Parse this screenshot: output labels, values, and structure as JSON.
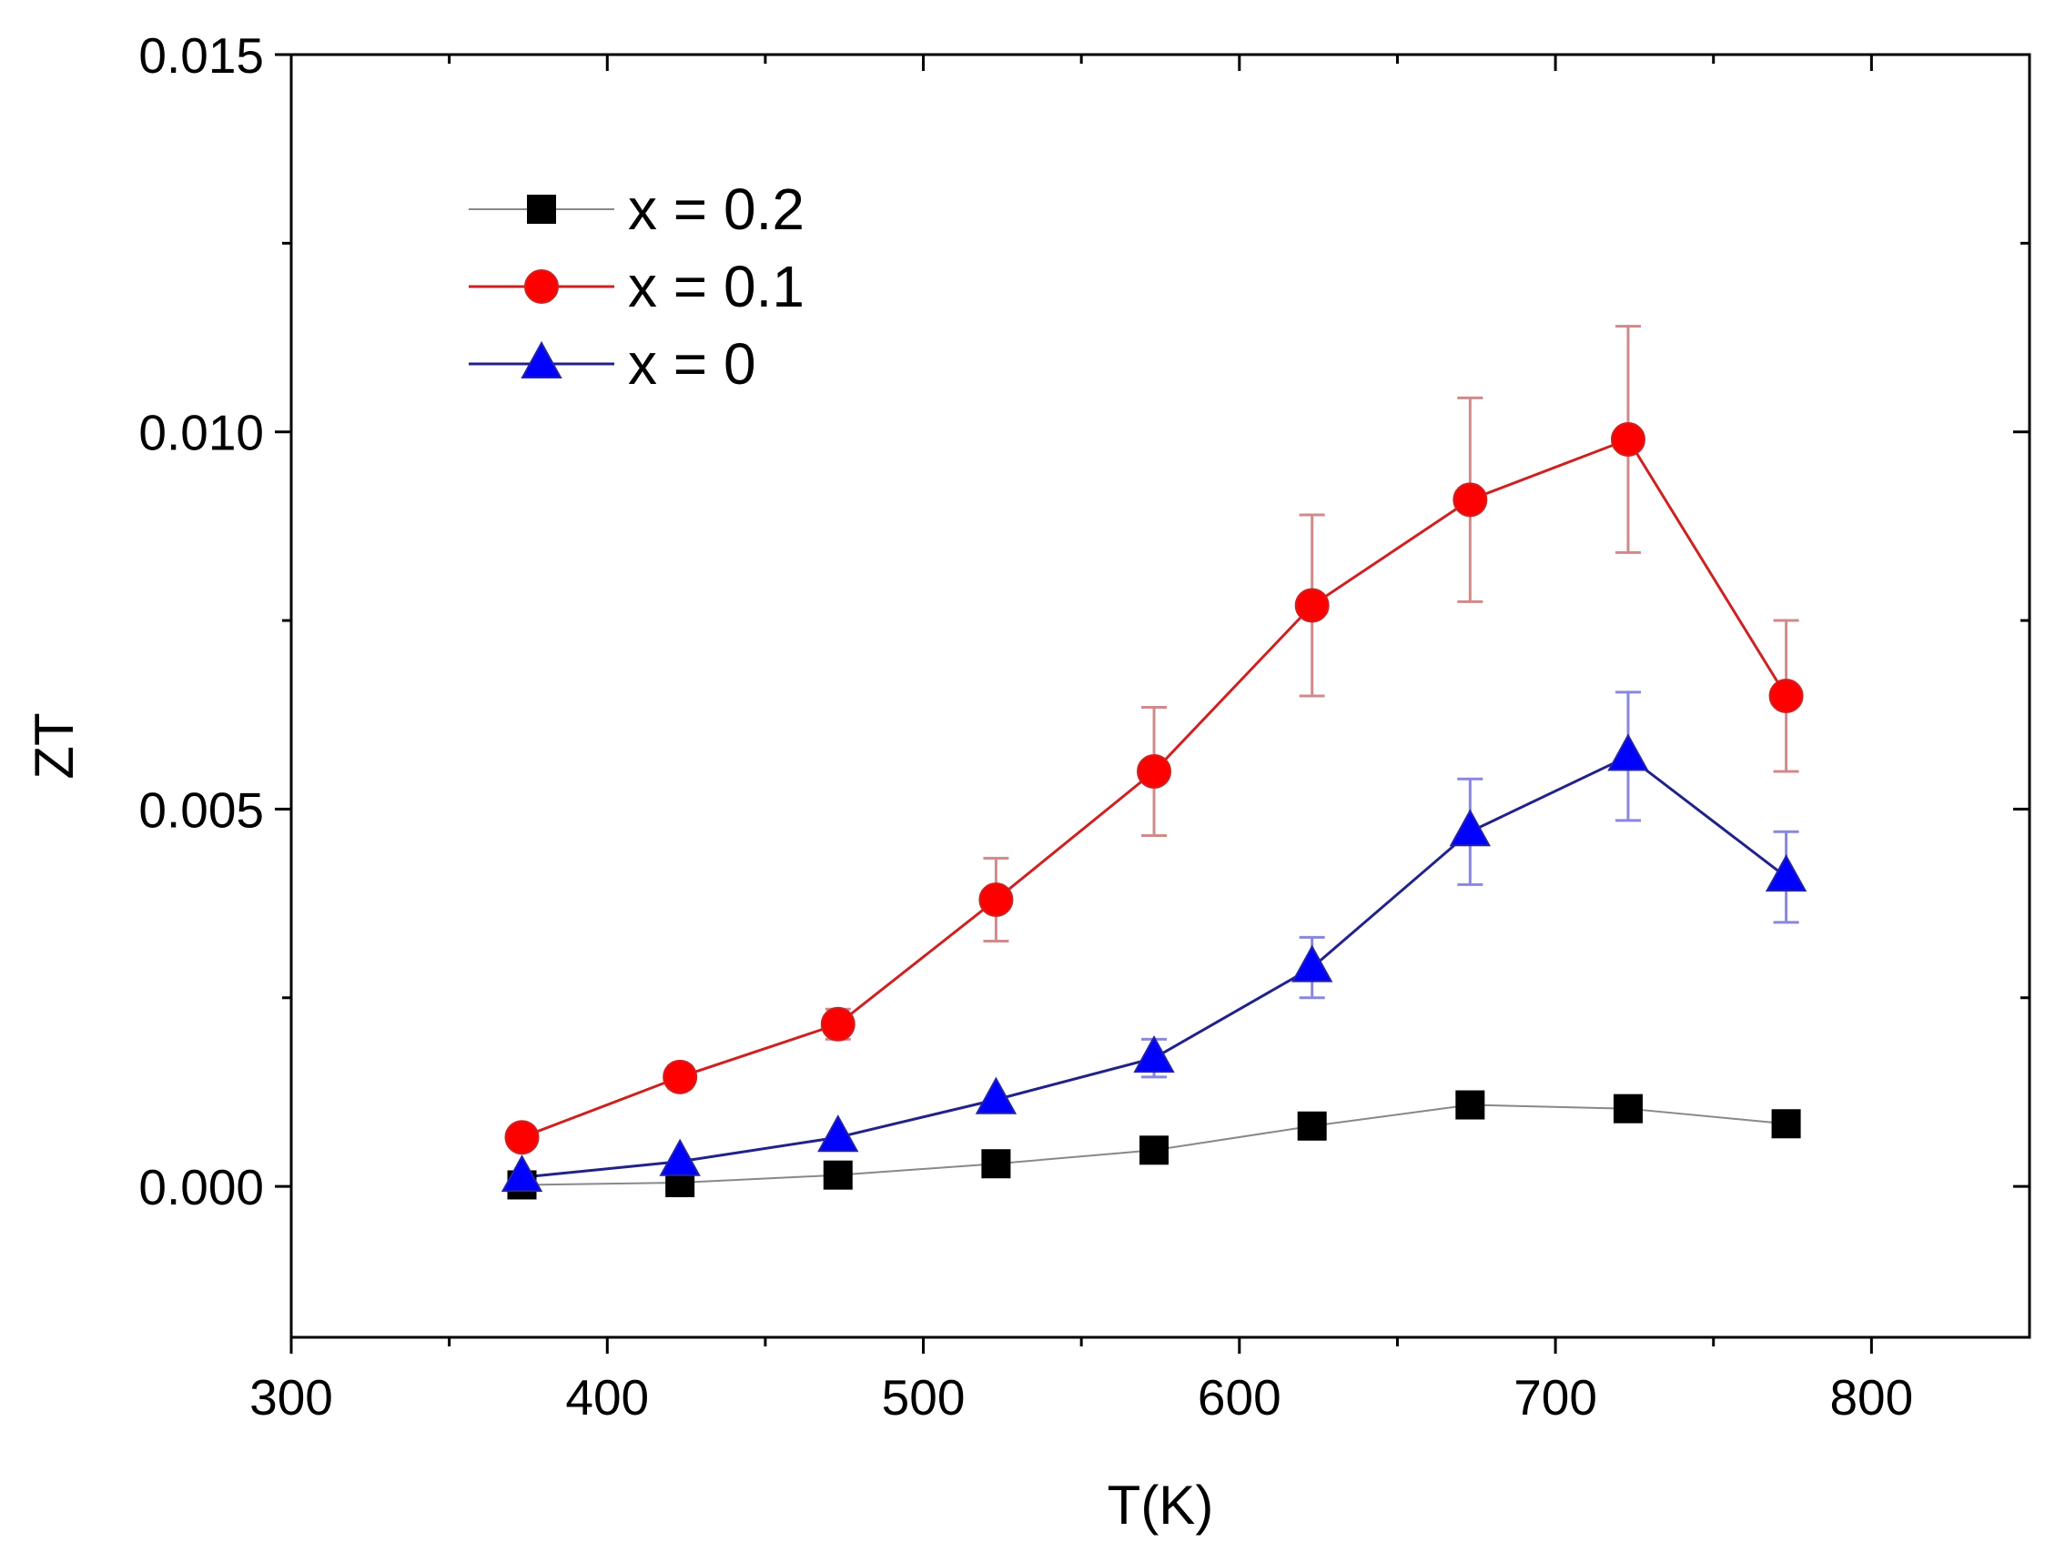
{
  "chart_data": {
    "type": "line",
    "title": "",
    "xlabel": "T(K)",
    "ylabel": "ZT",
    "xlim": [
      300,
      850
    ],
    "ylim": [
      -0.002,
      0.015
    ],
    "x_ticks": [
      300,
      400,
      500,
      600,
      700,
      800
    ],
    "x_tick_labels": [
      "300",
      "400",
      "500",
      "600",
      "700",
      "800"
    ],
    "y_ticks": [
      0.0,
      0.005,
      0.01,
      0.015
    ],
    "y_tick_labels": [
      "0.000",
      "0.005",
      "0.010",
      "0.015"
    ],
    "legend_position": "top-left",
    "x": [
      373,
      423,
      473,
      523,
      573,
      623,
      673,
      723,
      773
    ],
    "series": [
      {
        "name": "x = 0.2",
        "label": "x = 0.2",
        "color": "#000000",
        "line_color": "#888888",
        "marker": "square",
        "values": [
          2e-05,
          5e-05,
          0.00015,
          0.0003,
          0.00048,
          0.0008,
          0.00108,
          0.00103,
          0.00083
        ],
        "errors": null
      },
      {
        "name": "x = 0.1",
        "label": "x = 0.1",
        "color": "#ff0000",
        "line_color": "#cc2222",
        "marker": "circle",
        "values": [
          0.00065,
          0.00145,
          0.00215,
          0.0038,
          0.0055,
          0.0077,
          0.0091,
          0.0099,
          0.0065
        ],
        "errors": [
          0.0,
          0.00015,
          0.0002,
          0.00055,
          0.00085,
          0.0012,
          0.00135,
          0.0015,
          0.001
        ]
      },
      {
        "name": "x = 0",
        "label": "x = 0",
        "color": "#0000ff",
        "line_color": "#222288",
        "marker": "triangle",
        "values": [
          0.00012,
          0.00033,
          0.00065,
          0.00115,
          0.0017,
          0.0029,
          0.0047,
          0.0057,
          0.0041
        ],
        "errors": [
          0.0,
          0.0,
          0.0,
          0.0,
          0.00025,
          0.0004,
          0.0007,
          0.00085,
          0.0006
        ]
      }
    ]
  }
}
